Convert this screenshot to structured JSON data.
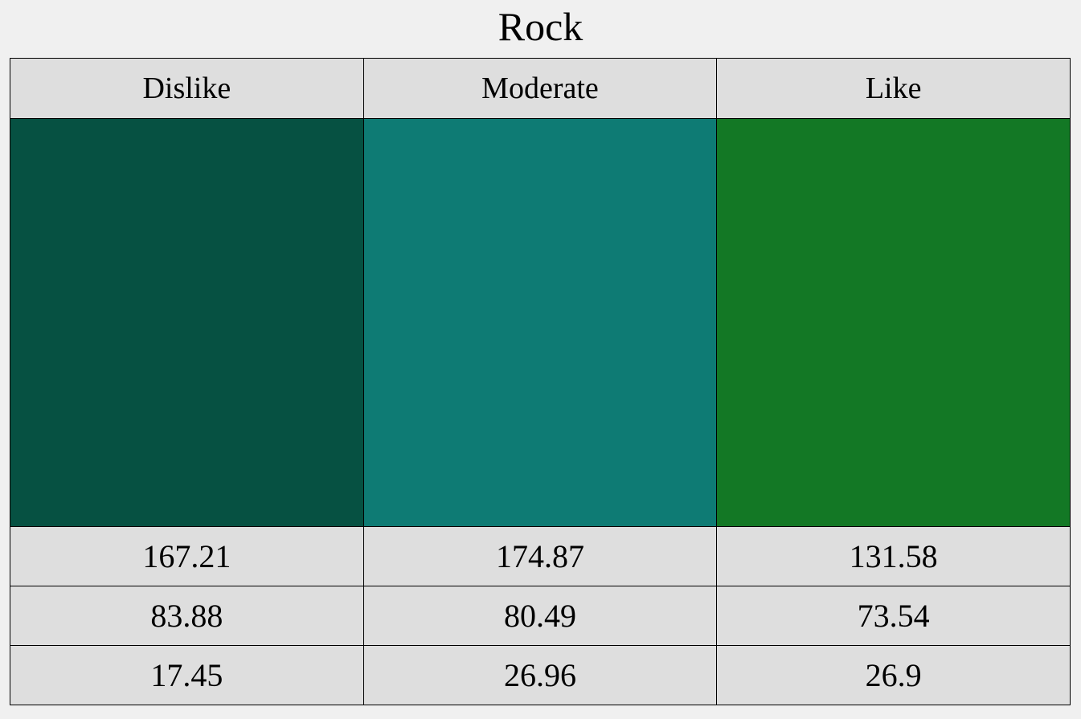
{
  "chart_data": {
    "type": "table",
    "title": "Rock",
    "categories": [
      "Dislike",
      "Moderate",
      "Like"
    ],
    "colors": [
      "#065142",
      "#0e7b74",
      "#137825"
    ],
    "rows": [
      [
        167.21,
        174.87,
        131.58
      ],
      [
        83.88,
        80.49,
        73.54
      ],
      [
        17.45,
        26.96,
        26.9
      ]
    ]
  }
}
